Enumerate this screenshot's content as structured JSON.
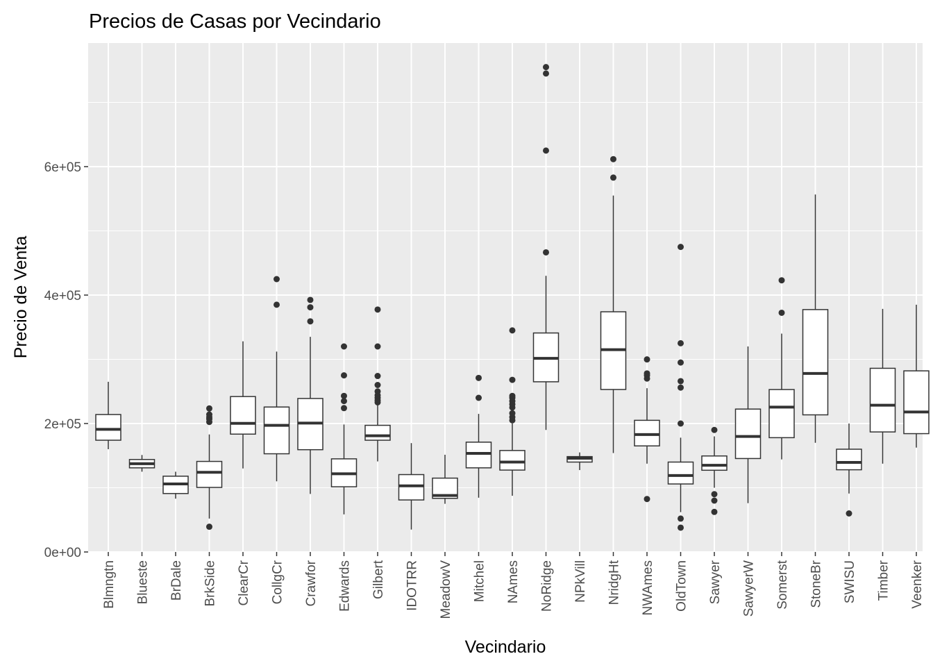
{
  "chart_data": {
    "type": "boxplot",
    "title": "Precios de Casas por Vecindario",
    "xlabel": "Vecindario",
    "ylabel": "Precio de Venta",
    "ylim": [
      0,
      790000
    ],
    "y_ticks": [
      {
        "value": 0,
        "label": "0e+00"
      },
      {
        "value": 200000,
        "label": "2e+05"
      },
      {
        "value": 400000,
        "label": "4e+05"
      },
      {
        "value": 600000,
        "label": "6e+05"
      }
    ],
    "grid": true,
    "colors": {
      "panel": "#ebebeb",
      "grid": "#ffffff",
      "box_fill": "#ffffff",
      "stroke": "#333333",
      "axis_text": "#4d4d4d",
      "title": "#000000"
    },
    "categories": [
      {
        "name": "Blmngtn",
        "lower": 160000,
        "q1": 174000,
        "median": 191000,
        "q3": 214000,
        "upper": 265000,
        "outliers": []
      },
      {
        "name": "Blueste",
        "lower": 125000,
        "q1": 131000,
        "median": 137500,
        "q3": 144000,
        "upper": 151000,
        "outliers": []
      },
      {
        "name": "BrDale",
        "lower": 83000,
        "q1": 91000,
        "median": 106000,
        "q3": 118000,
        "upper": 125000,
        "outliers": []
      },
      {
        "name": "BrkSide",
        "lower": 52000,
        "q1": 100500,
        "median": 124000,
        "q3": 141000,
        "upper": 183000,
        "outliers": [
          39300,
          202500,
          207000,
          210000,
          214000,
          223500
        ]
      },
      {
        "name": "ClearCr",
        "lower": 130000,
        "q1": 183500,
        "median": 200250,
        "q3": 242000,
        "upper": 328000,
        "outliers": []
      },
      {
        "name": "CollgCr",
        "lower": 110000,
        "q1": 152900,
        "median": 197200,
        "q3": 225700,
        "upper": 312000,
        "outliers": [
          385000,
          424870
        ]
      },
      {
        "name": "Crawfor",
        "lower": 90350,
        "q1": 159250,
        "median": 200624,
        "q3": 239000,
        "upper": 335000,
        "outliers": [
          359100,
          381000,
          392500
        ]
      },
      {
        "name": "Edwards",
        "lower": 58500,
        "q1": 101500,
        "median": 121750,
        "q3": 145000,
        "upper": 198500,
        "outliers": [
          224000,
          235000,
          243000,
          275000,
          320000
        ]
      },
      {
        "name": "Gilbert",
        "lower": 141000,
        "q1": 174000,
        "median": 181000,
        "q3": 197200,
        "upper": 230000,
        "outliers": [
          233000,
          236000,
          240000,
          244000,
          250000,
          260000,
          274000,
          320000,
          377500
        ]
      },
      {
        "name": "IDOTRR",
        "lower": 34900,
        "q1": 81000,
        "median": 103000,
        "q3": 120500,
        "upper": 169500,
        "outliers": []
      },
      {
        "name": "MeadowV",
        "lower": 75000,
        "q1": 83500,
        "median": 88000,
        "q3": 115000,
        "upper": 151400,
        "outliers": []
      },
      {
        "name": "Mitchel",
        "lower": 84500,
        "q1": 131000,
        "median": 153500,
        "q3": 171000,
        "upper": 215000,
        "outliers": [
          240000,
          271000
        ]
      },
      {
        "name": "NAmes",
        "lower": 87500,
        "q1": 127500,
        "median": 140000,
        "q3": 158000,
        "upper": 200000,
        "outliers": [
          205000,
          210000,
          216000,
          225000,
          230000,
          235000,
          240000,
          243000,
          268000,
          345000
        ]
      },
      {
        "name": "NoRidge",
        "lower": 190000,
        "q1": 265000,
        "median": 301500,
        "q3": 341000,
        "upper": 430000,
        "outliers": [
          466500,
          625000,
          745000,
          755000
        ]
      },
      {
        "name": "NPkVill",
        "lower": 127500,
        "q1": 140000,
        "median": 146000,
        "q3": 148500,
        "upper": 155000,
        "outliers": []
      },
      {
        "name": "NridgHt",
        "lower": 154000,
        "q1": 253000,
        "median": 315000,
        "q3": 374000,
        "upper": 555000,
        "outliers": [
          582933,
          611657
        ]
      },
      {
        "name": "NWAmes",
        "lower": 137500,
        "q1": 165150,
        "median": 182900,
        "q3": 205000,
        "upper": 255000,
        "outliers": [
          82500,
          270000,
          275000,
          278000,
          299800
        ]
      },
      {
        "name": "OldTown",
        "lower": 62000,
        "q1": 105900,
        "median": 119000,
        "q3": 140000,
        "upper": 178000,
        "outliers": [
          37900,
          52000,
          200000,
          256000,
          265979,
          295000,
          325000,
          475000
        ]
      },
      {
        "name": "Sawyer",
        "lower": 100000,
        "q1": 127250,
        "median": 135000,
        "q3": 149500,
        "upper": 180000,
        "outliers": [
          62383,
          80000,
          90000,
          190000
        ]
      },
      {
        "name": "SawyerW",
        "lower": 76000,
        "q1": 145500,
        "median": 179900,
        "q3": 222500,
        "upper": 320000,
        "outliers": []
      },
      {
        "name": "Somerst",
        "lower": 144152,
        "q1": 177975,
        "median": 225500,
        "q3": 252919,
        "upper": 340000,
        "outliers": [
          372500,
          423000
        ]
      },
      {
        "name": "StoneBr",
        "lower": 170000,
        "q1": 213500,
        "median": 278000,
        "q3": 377426,
        "upper": 556581,
        "outliers": []
      },
      {
        "name": "SWISU",
        "lower": 91000,
        "q1": 128000,
        "median": 139500,
        "q3": 160000,
        "upper": 200000,
        "outliers": [
          60000
        ]
      },
      {
        "name": "Timber",
        "lower": 137500,
        "q1": 186900,
        "median": 228475,
        "q3": 286000,
        "upper": 378500,
        "outliers": []
      },
      {
        "name": "Veenker",
        "lower": 162500,
        "q1": 184250,
        "median": 218000,
        "q3": 282000,
        "upper": 385000,
        "outliers": []
      }
    ]
  }
}
